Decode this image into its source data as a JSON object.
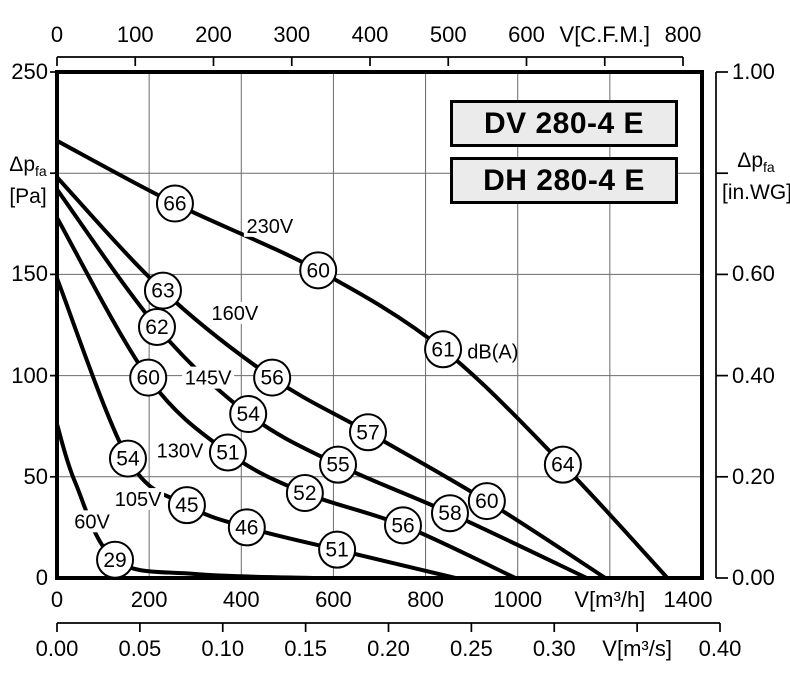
{
  "model_labels": {
    "dv": "DV 280-4 E",
    "dh": "DH 280-4 E"
  },
  "axis_titles": {
    "pressure_main": "Δp",
    "pressure_sub": "fa",
    "left_unit": "[Pa]",
    "right_unit": "[in.WG]",
    "top_unit": "V[C.F.M.]",
    "bottom_m3h_unit": "V[m³/h]",
    "bottom_m3s_unit": "V[m³/s]"
  },
  "axes": {
    "top_cfm": {
      "ticks": [
        0,
        100,
        200,
        300,
        400,
        500,
        600,
        700,
        800
      ],
      "labels": [
        "0",
        "100",
        "200",
        "300",
        "400",
        "500",
        "600",
        "V[C.F.M.]",
        "800"
      ]
    },
    "left_pa": {
      "ticks": [
        0,
        50,
        100,
        150,
        200,
        250
      ],
      "labels": [
        "0",
        "50",
        "100",
        "150",
        "",
        "250"
      ]
    },
    "right_inwg": {
      "ticks": [
        0,
        0.2,
        0.4,
        0.6,
        0.8,
        1.0
      ],
      "labels": [
        "0.00",
        "0.20",
        "0.40",
        "0.60",
        "",
        "1.00"
      ]
    },
    "bottom_m3h": {
      "ticks": [
        0,
        200,
        400,
        600,
        800,
        1000,
        1200,
        1400
      ],
      "labels": [
        "0",
        "200",
        "400",
        "600",
        "800",
        "1000",
        "V[m³/h]",
        "1400"
      ]
    },
    "bottom_m3s": {
      "ticks": [
        0,
        0.05,
        0.1,
        0.15,
        0.2,
        0.25,
        0.3,
        0.35,
        0.4
      ],
      "labels": [
        "0.00",
        "0.05",
        "0.10",
        "0.15",
        "0.20",
        "0.25",
        "0.30",
        "V[m³/s]",
        "0.40"
      ]
    }
  },
  "chart_data": {
    "type": "line",
    "title": "DV 280-4 E / DH 280-4 E fan performance curves",
    "xlabel": "V[m³/h]",
    "ylabel": "Δp fa [Pa]",
    "x_range_m3h": [
      0,
      1400
    ],
    "x_range_cfm": [
      0,
      800
    ],
    "x_range_m3s": [
      0,
      0.4
    ],
    "y_range_pa": [
      0,
      250
    ],
    "y_range_inwg": [
      0,
      1.0
    ],
    "grid": true,
    "noise_unit": "dB(A)",
    "series": [
      {
        "name": "230V",
        "curve": [
          [
            0,
            216
          ],
          [
            256,
            185
          ],
          [
            567,
            152
          ],
          [
            838,
            113
          ],
          [
            1098,
            56
          ],
          [
            1325,
            0
          ]
        ],
        "db_points": [
          {
            "m3h": 256,
            "pa": 185,
            "db": "66"
          },
          {
            "m3h": 567,
            "pa": 152,
            "db": "60"
          },
          {
            "m3h": 838,
            "pa": 113,
            "db": "61"
          },
          {
            "m3h": 1098,
            "pa": 56,
            "db": "64"
          }
        ],
        "label_pos": {
          "m3h": 462,
          "pa": 174
        }
      },
      {
        "name": "160V",
        "curve": [
          [
            0,
            198
          ],
          [
            230,
            142
          ],
          [
            467,
            99
          ],
          [
            675,
            72
          ],
          [
            933,
            38
          ],
          [
            1190,
            0
          ]
        ],
        "db_points": [
          {
            "m3h": 230,
            "pa": 142,
            "db": "63"
          },
          {
            "m3h": 467,
            "pa": 99,
            "db": "56"
          },
          {
            "m3h": 675,
            "pa": 72,
            "db": "57"
          },
          {
            "m3h": 933,
            "pa": 38,
            "db": "60"
          }
        ],
        "label_pos": {
          "m3h": 386,
          "pa": 131
        }
      },
      {
        "name": "145V",
        "curve": [
          [
            0,
            192
          ],
          [
            217,
            124
          ],
          [
            415,
            81
          ],
          [
            610,
            56
          ],
          [
            853,
            32
          ],
          [
            1150,
            0
          ]
        ],
        "db_points": [
          {
            "m3h": 217,
            "pa": 124,
            "db": "62"
          },
          {
            "m3h": 415,
            "pa": 81,
            "db": "54"
          },
          {
            "m3h": 610,
            "pa": 56,
            "db": "55"
          },
          {
            "m3h": 853,
            "pa": 32,
            "db": "58"
          }
        ],
        "label_pos": {
          "m3h": 328,
          "pa": 99
        }
      },
      {
        "name": "130V",
        "curve": [
          [
            0,
            178
          ],
          [
            198,
            99
          ],
          [
            371,
            62
          ],
          [
            538,
            42
          ],
          [
            751,
            26
          ],
          [
            995,
            0
          ]
        ],
        "db_points": [
          {
            "m3h": 198,
            "pa": 99,
            "db": "60"
          },
          {
            "m3h": 371,
            "pa": 62,
            "db": "51"
          },
          {
            "m3h": 538,
            "pa": 42,
            "db": "52"
          },
          {
            "m3h": 751,
            "pa": 26,
            "db": "56"
          }
        ],
        "label_pos": {
          "m3h": 267,
          "pa": 63
        }
      },
      {
        "name": "105V",
        "curve": [
          [
            0,
            148
          ],
          [
            154,
            59
          ],
          [
            282,
            36
          ],
          [
            412,
            25
          ],
          [
            608,
            14
          ],
          [
            865,
            0
          ]
        ],
        "db_points": [
          {
            "m3h": 154,
            "pa": 59,
            "db": "54"
          },
          {
            "m3h": 282,
            "pa": 36,
            "db": "45"
          },
          {
            "m3h": 412,
            "pa": 25,
            "db": "46"
          },
          {
            "m3h": 608,
            "pa": 14,
            "db": "51"
          }
        ],
        "label_pos": {
          "m3h": 176,
          "pa": 39
        }
      },
      {
        "name": "60V",
        "curve": [
          [
            0,
            76
          ],
          [
            40,
            47
          ],
          [
            126,
            9
          ],
          [
            300,
            2
          ],
          [
            560,
            0
          ]
        ],
        "db_points": [
          {
            "m3h": 126,
            "pa": 9,
            "db": "29"
          }
        ],
        "label_pos": {
          "m3h": 76,
          "pa": 28
        }
      }
    ],
    "annotations": [
      {
        "text": "dB(A)",
        "m3h": 946,
        "pa": 112
      }
    ]
  }
}
